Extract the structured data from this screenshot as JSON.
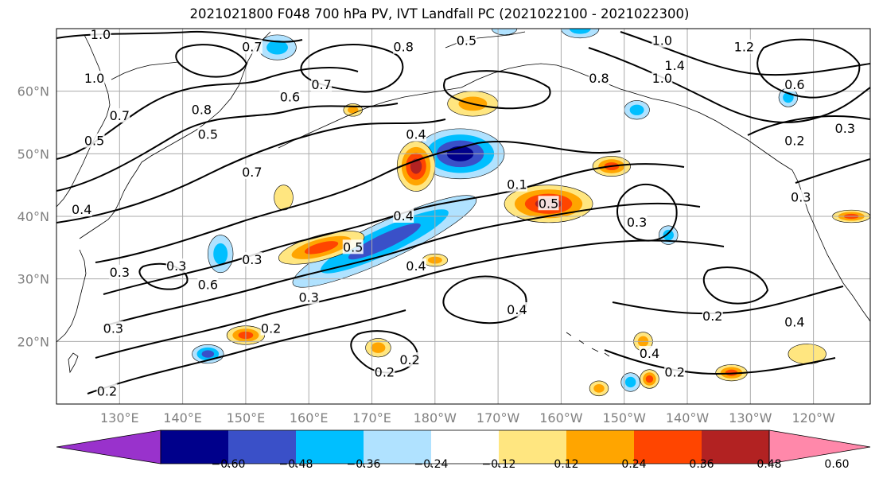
{
  "title": "2021021800 F048 700 hPa PV, IVT Landfall PC (2021022100 - 2021022300)",
  "map": {
    "lat_labels": [
      {
        "lat": 60,
        "text": "60°N"
      },
      {
        "lat": 50,
        "text": "50°N"
      },
      {
        "lat": 40,
        "text": "40°N"
      },
      {
        "lat": 30,
        "text": "30°N"
      },
      {
        "lat": 20,
        "text": "20°N"
      }
    ],
    "lon_labels": [
      {
        "lon": 130,
        "text": "130°E"
      },
      {
        "lon": 140,
        "text": "140°E"
      },
      {
        "lon": 150,
        "text": "150°E"
      },
      {
        "lon": 160,
        "text": "160°E"
      },
      {
        "lon": 170,
        "text": "170°E"
      },
      {
        "lon": 180,
        "text": "180°W"
      },
      {
        "lon": 190,
        "text": "170°W"
      },
      {
        "lon": 200,
        "text": "160°W"
      },
      {
        "lon": 210,
        "text": "150°W"
      },
      {
        "lon": 220,
        "text": "140°W"
      },
      {
        "lon": 230,
        "text": "130°W"
      },
      {
        "lon": 240,
        "text": "120°W"
      }
    ],
    "extent": {
      "lon_min": 120,
      "lon_max": 249,
      "lat_min": 10,
      "lat_max": 70
    },
    "contour_labels": [
      {
        "lon": 127,
        "lat": 69,
        "text": "1.0"
      },
      {
        "lon": 126,
        "lat": 62,
        "text": "1.0"
      },
      {
        "lon": 126,
        "lat": 52,
        "text": "0.5"
      },
      {
        "lon": 124,
        "lat": 41,
        "text": "0.4"
      },
      {
        "lon": 130,
        "lat": 56,
        "text": "0.7"
      },
      {
        "lon": 151,
        "lat": 67,
        "text": "0.7"
      },
      {
        "lon": 143,
        "lat": 57,
        "text": "0.8"
      },
      {
        "lon": 144,
        "lat": 53,
        "text": "0.5"
      },
      {
        "lon": 157,
        "lat": 59,
        "text": "0.6"
      },
      {
        "lon": 162,
        "lat": 61,
        "text": "0.7"
      },
      {
        "lon": 175,
        "lat": 67,
        "text": "0.8"
      },
      {
        "lon": 185,
        "lat": 68,
        "text": "0.5"
      },
      {
        "lon": 151,
        "lat": 47,
        "text": "0.7"
      },
      {
        "lon": 177,
        "lat": 53,
        "text": "0.4"
      },
      {
        "lon": 193,
        "lat": 45,
        "text": "0.1"
      },
      {
        "lon": 198,
        "lat": 42,
        "text": "0.5"
      },
      {
        "lon": 206,
        "lat": 62,
        "text": "0.8"
      },
      {
        "lon": 216,
        "lat": 62,
        "text": "1.0"
      },
      {
        "lon": 216,
        "lat": 68,
        "text": "1.0"
      },
      {
        "lon": 218,
        "lat": 64,
        "text": "1.4"
      },
      {
        "lon": 229,
        "lat": 67,
        "text": "1.2"
      },
      {
        "lon": 237,
        "lat": 61,
        "text": "0.6"
      },
      {
        "lon": 245,
        "lat": 54,
        "text": "0.3"
      },
      {
        "lon": 237,
        "lat": 52,
        "text": "0.2"
      },
      {
        "lon": 238,
        "lat": 43,
        "text": "0.3"
      },
      {
        "lon": 175,
        "lat": 40,
        "text": "0.4"
      },
      {
        "lon": 167,
        "lat": 35,
        "text": "0.5"
      },
      {
        "lon": 177,
        "lat": 32,
        "text": "0.4"
      },
      {
        "lon": 151,
        "lat": 33,
        "text": "0.3"
      },
      {
        "lon": 139,
        "lat": 32,
        "text": "0.3"
      },
      {
        "lon": 130,
        "lat": 31,
        "text": "0.3"
      },
      {
        "lon": 144,
        "lat": 29,
        "text": "0.6"
      },
      {
        "lon": 160,
        "lat": 27,
        "text": "0.3"
      },
      {
        "lon": 154,
        "lat": 22,
        "text": "0.2"
      },
      {
        "lon": 129,
        "lat": 22,
        "text": "0.3"
      },
      {
        "lon": 128,
        "lat": 12,
        "text": "0.2"
      },
      {
        "lon": 176,
        "lat": 17,
        "text": "0.2"
      },
      {
        "lon": 172,
        "lat": 15,
        "text": "0.2"
      },
      {
        "lon": 193,
        "lat": 25,
        "text": "0.4"
      },
      {
        "lon": 212,
        "lat": 39,
        "text": "0.3"
      },
      {
        "lon": 224,
        "lat": 24,
        "text": "0.2"
      },
      {
        "lon": 237,
        "lat": 23,
        "text": "0.4"
      },
      {
        "lon": 214,
        "lat": 18,
        "text": "0.4"
      },
      {
        "lon": 218,
        "lat": 15,
        "text": "0.2"
      }
    ]
  },
  "colorbar": {
    "boundaries": [
      -0.72,
      -0.6,
      -0.48,
      -0.36,
      -0.24,
      -0.12,
      0.12,
      0.24,
      0.36,
      0.48,
      0.6,
      0.72
    ],
    "colors": [
      "#9932CC",
      "#00008B",
      "#3A50C8",
      "#00BFFF",
      "#B0E2FF",
      "#FFFFFF",
      "#FFE680",
      "#FFA500",
      "#FF4500",
      "#B22222",
      "#FF88AA"
    ],
    "tick_labels": [
      "−0.60",
      "−0.48",
      "−0.36",
      "−0.24",
      "−0.12",
      "0.12",
      "0.24",
      "0.36",
      "0.48",
      "0.60"
    ],
    "tick_values": [
      -0.6,
      -0.48,
      -0.36,
      -0.24,
      -0.12,
      0.12,
      0.24,
      0.36,
      0.48,
      0.6
    ],
    "extend": "both"
  },
  "shaded_features": [
    {
      "kind": "negative",
      "lon": 184,
      "lat": 50,
      "rx": 7,
      "ry": 4,
      "levels": 4
    },
    {
      "kind": "negative",
      "lon": 172,
      "lat": 36,
      "rx": 16,
      "ry": 3,
      "levels": 3,
      "angle": -25
    },
    {
      "kind": "positive",
      "lon": 177,
      "lat": 48,
      "rx": 3,
      "ry": 4,
      "levels": 4
    },
    {
      "kind": "positive",
      "lon": 198,
      "lat": 42,
      "rx": 7,
      "ry": 3,
      "levels": 4
    },
    {
      "kind": "positive",
      "lon": 162,
      "lat": 35,
      "rx": 7,
      "ry": 2,
      "levels": 3,
      "angle": -15
    },
    {
      "kind": "positive",
      "lon": 186,
      "lat": 58,
      "rx": 4,
      "ry": 2,
      "levels": 2
    },
    {
      "kind": "positive",
      "lon": 208,
      "lat": 48,
      "rx": 3,
      "ry": 1.6,
      "levels": 3
    },
    {
      "kind": "negative",
      "lon": 146,
      "lat": 34,
      "rx": 2,
      "ry": 3,
      "levels": 2
    },
    {
      "kind": "positive",
      "lon": 150,
      "lat": 21,
      "rx": 3,
      "ry": 1.5,
      "levels": 3
    },
    {
      "kind": "negative",
      "lon": 144,
      "lat": 18,
      "rx": 2.5,
      "ry": 1.5,
      "levels": 3
    },
    {
      "kind": "negative",
      "lon": 155,
      "lat": 67,
      "rx": 3,
      "ry": 2,
      "levels": 2
    },
    {
      "kind": "positive",
      "lon": 180,
      "lat": 33,
      "rx": 2,
      "ry": 1,
      "levels": 2
    },
    {
      "kind": "positive",
      "lon": 156,
      "lat": 43,
      "rx": 1.5,
      "ry": 2,
      "levels": 1
    },
    {
      "kind": "negative",
      "lon": 236,
      "lat": 59,
      "rx": 1.5,
      "ry": 1.5,
      "levels": 2
    },
    {
      "kind": "positive",
      "lon": 246,
      "lat": 40,
      "rx": 3,
      "ry": 1,
      "levels": 3
    },
    {
      "kind": "negative",
      "lon": 217,
      "lat": 37,
      "rx": 1.5,
      "ry": 1.5,
      "levels": 2
    },
    {
      "kind": "positive",
      "lon": 239,
      "lat": 18,
      "rx": 3,
      "ry": 1.6,
      "levels": 1
    },
    {
      "kind": "positive",
      "lon": 227,
      "lat": 15,
      "rx": 2.5,
      "ry": 1.3,
      "levels": 3
    },
    {
      "kind": "positive",
      "lon": 214,
      "lat": 14,
      "rx": 1.5,
      "ry": 1.5,
      "levels": 3
    },
    {
      "kind": "negative",
      "lon": 211,
      "lat": 13.5,
      "rx": 1.5,
      "ry": 1.5,
      "levels": 2
    },
    {
      "kind": "positive",
      "lon": 206,
      "lat": 12.5,
      "rx": 1.5,
      "ry": 1.2,
      "levels": 2
    },
    {
      "kind": "positive",
      "lon": 213,
      "lat": 20,
      "rx": 1.5,
      "ry": 1.5,
      "levels": 2
    },
    {
      "kind": "positive",
      "lon": 171,
      "lat": 19,
      "rx": 2,
      "ry": 1.5,
      "levels": 2
    },
    {
      "kind": "negative",
      "lon": 212,
      "lat": 57,
      "rx": 2,
      "ry": 1.5,
      "levels": 2
    },
    {
      "kind": "positive",
      "lon": 167,
      "lat": 57,
      "rx": 1.5,
      "ry": 1,
      "levels": 2
    },
    {
      "kind": "negative",
      "lon": 203,
      "lat": 70,
      "rx": 3,
      "ry": 1.5,
      "levels": 2
    },
    {
      "kind": "negative",
      "lon": 191,
      "lat": 70,
      "rx": 2,
      "ry": 1,
      "levels": 1
    }
  ]
}
